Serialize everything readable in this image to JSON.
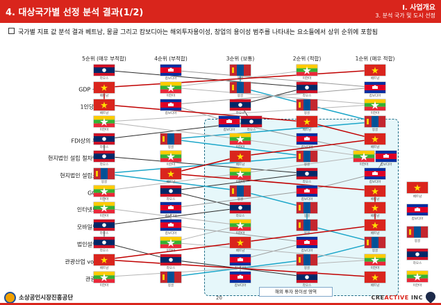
{
  "header": {
    "title": "4. 대상국가별 선정 분석 결과(1/2)",
    "section": "I. 사업개요",
    "subsection": "3. 분석 국가 및 도시 선정"
  },
  "description": "국가별 지표 값 분석 결과 베트남, 몽골 그리고 캄보디아는 해외투자용이성, 창업의 용이성 범주를 나타내는 요소들에서 상위 순위에 포함됨",
  "columns": [
    "5순위 (매우 부적합)",
    "4순위 (부적합)",
    "3순위 (보통)",
    "2순위 (적합)",
    "1순위 (매우 적합)"
  ],
  "rows": [
    {
      "label": "GDP",
      "ranks": [
        "laos",
        "cambodia",
        "mongolia",
        "myanmar",
        "vietnam"
      ]
    },
    {
      "label": "GDP 성장률",
      "ranks": [
        "vietnam",
        "myanmar",
        "mongolia",
        "laos",
        "cambodia"
      ]
    },
    {
      "label": "1인당 GDP",
      "ranks": [
        "vietnam",
        "cambodia",
        "laos",
        "mongolia",
        "myanmar"
      ]
    },
    {
      "label": "HDI",
      "ranks": [
        "myanmar",
        "",
        "cambodia|laos",
        "vietnam",
        "mongolia"
      ]
    },
    {
      "label": "FDI상의 투자액",
      "ranks": [
        "laos",
        "mongolia",
        "myanmar",
        "cambodia",
        "vietnam"
      ]
    },
    {
      "label": "현지법인 설립 절차단계수",
      "ranks": [
        "laos",
        "myanmar",
        "vietnam",
        "mongolia",
        "myanmar|cambodia"
      ]
    },
    {
      "label": "현지법인 설립소요일",
      "ranks": [
        "mongolia",
        "vietnam",
        "myanmar",
        "laos",
        "cambodia"
      ]
    },
    {
      "label": "GCI지수",
      "ranks": [
        "myanmar",
        "laos",
        "mongolia",
        "cambodia",
        "vietnam"
      ]
    },
    {
      "label": "인터넷보급률",
      "ranks": [
        "myanmar",
        "cambodia",
        "laos",
        "mongolia",
        "vietnam"
      ]
    },
    {
      "label": "모바일보급률",
      "ranks": [
        "laos",
        "cambodia",
        "myanmar",
        "mongolia",
        "vietnam"
      ]
    },
    {
      "label": "법인설립건수",
      "ranks": [
        "laos",
        "myanmar",
        "vietnam",
        "cambodia",
        "mongolia"
      ]
    },
    {
      "label": "관광산업 volume",
      "ranks": [
        "vietnam",
        "laos",
        "cambodia",
        "mongolia",
        "myanmar"
      ]
    },
    {
      "label": "관광객 수",
      "ranks": [
        "myanmar",
        "mongolia",
        "cambodia",
        "laos",
        "vietnam"
      ]
    }
  ],
  "flag_names": {
    "vietnam": "베트남",
    "laos": "라오스",
    "cambodia": "캄보디아",
    "mongolia": "몽골",
    "myanmar": "미얀마"
  },
  "legend": [
    "vietnam",
    "cambodia",
    "mongolia",
    "laos",
    "myanmar"
  ],
  "line_colors": {
    "vietnam": "#c00000",
    "cambodia": "#9a9a9a",
    "mongolia": "#1ba6c9",
    "laos": "#2b2b2b",
    "myanmar": "#b5b5b5"
  },
  "region_label": "해외 투자 용이성 영역",
  "page_number": "20",
  "footer": {
    "left_logo": "소상공인시장진흥공단",
    "right_logo_a": "CRE",
    "right_logo_b": "ACTIVE",
    "right_logo_c": " INC"
  }
}
